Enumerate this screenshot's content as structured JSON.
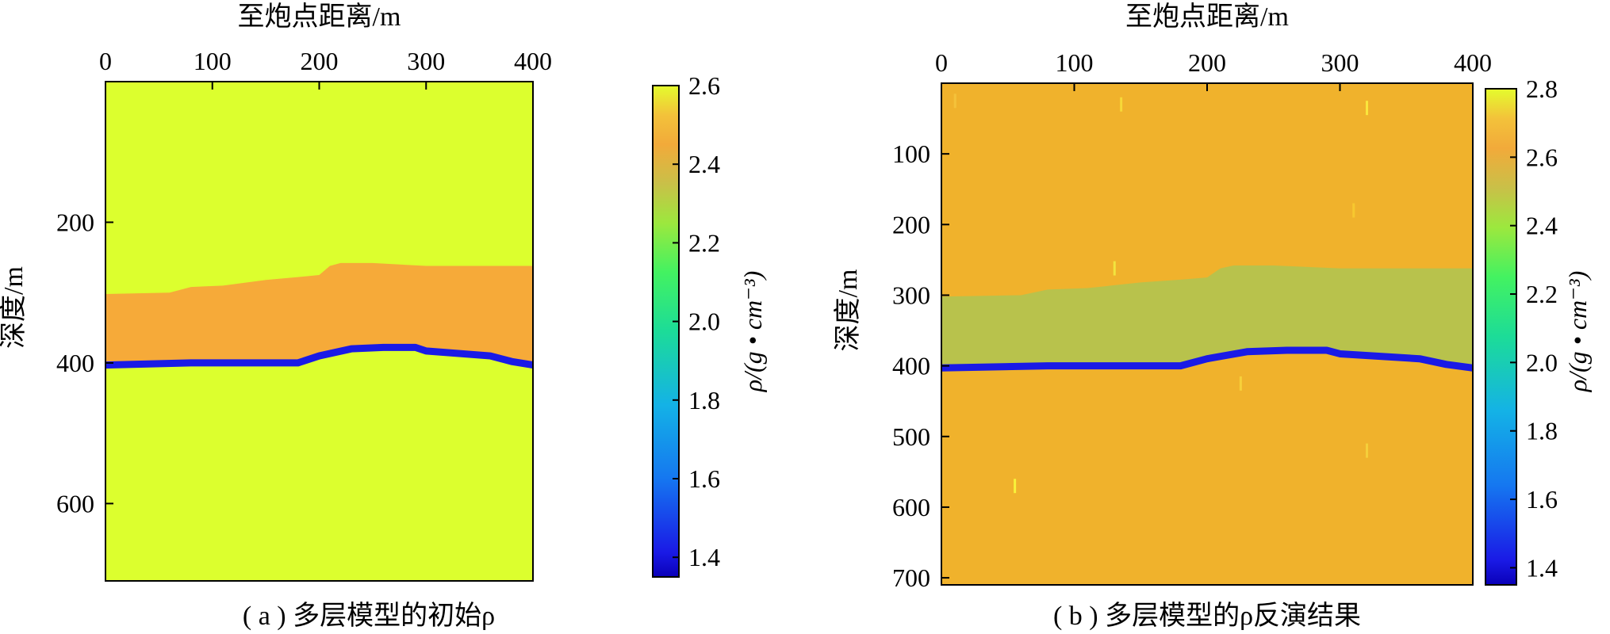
{
  "chart_data": [
    {
      "type": "heatmap",
      "panel": "a",
      "caption_prefix": "( a ) ",
      "caption": "多层模型的初始ρ",
      "xlabel": "至炮点距离/m",
      "ylabel": "深度/m",
      "xlim": [
        0,
        400
      ],
      "ylim": [
        710,
        0
      ],
      "xticks": [
        0,
        100,
        200,
        300,
        400
      ],
      "yticks": [
        200,
        400,
        600
      ],
      "colorbar": {
        "label": "ρ/(g • cm⁻³)",
        "range": [
          1.35,
          2.6
        ],
        "ticks": [
          1.4,
          1.6,
          1.8,
          2.0,
          2.2,
          2.4,
          2.6
        ],
        "tick_labels": [
          "1.4",
          "1.6",
          "1.8",
          "2.0",
          "2.2",
          "2.4",
          "2.6"
        ]
      },
      "layers": [
        {
          "value": 2.6,
          "color": "#dcff2e",
          "region": "above layer top"
        },
        {
          "value": 2.4,
          "color": "#f6aa39",
          "region": "between layer top and blue boundary"
        },
        {
          "value": 2.6,
          "color": "#dcff2e",
          "region": "below blue boundary"
        }
      ],
      "layer_top_depth": {
        "x": [
          0,
          60,
          80,
          110,
          150,
          180,
          200,
          210,
          220,
          250,
          300,
          400
        ],
        "y": [
          302,
          300,
          292,
          290,
          282,
          278,
          275,
          262,
          258,
          258,
          262,
          262
        ]
      },
      "boundary": {
        "value": 1.35,
        "color": "#1a1ae6",
        "x": [
          0,
          80,
          180,
          200,
          230,
          260,
          290,
          300,
          360,
          380,
          400
        ],
        "y": [
          403,
          400,
          400,
          390,
          380,
          378,
          378,
          383,
          390,
          398,
          403
        ]
      }
    },
    {
      "type": "heatmap",
      "panel": "b",
      "caption_prefix": "( b ) ",
      "caption": "多层模型的ρ反演结果",
      "xlabel": "至炮点距离/m",
      "ylabel": "深度/m",
      "xlim": [
        0,
        400
      ],
      "ylim": [
        710,
        0
      ],
      "xticks": [
        0,
        100,
        200,
        300,
        400
      ],
      "yticks": [
        100,
        200,
        300,
        400,
        500,
        600,
        700
      ],
      "colorbar": {
        "label": "ρ/(g • cm⁻³)",
        "range": [
          1.35,
          2.8
        ],
        "ticks": [
          1.4,
          1.6,
          1.8,
          2.0,
          2.2,
          2.4,
          2.6,
          2.8
        ],
        "tick_labels": [
          "1.4",
          "1.6",
          "1.8",
          "2.0",
          "2.2",
          "2.4",
          "2.6",
          "2.8"
        ]
      },
      "layers": [
        {
          "value": 2.6,
          "color": "#f0b22c",
          "region": "above layer top"
        },
        {
          "value": 2.4,
          "color": "#b8c24c",
          "region": "between layer top and blue boundary"
        },
        {
          "value": 2.6,
          "color": "#f0b22c",
          "region": "below blue boundary"
        }
      ],
      "layer_top_depth": {
        "x": [
          0,
          60,
          80,
          110,
          150,
          180,
          200,
          210,
          220,
          250,
          300,
          400
        ],
        "y": [
          302,
          300,
          292,
          290,
          282,
          278,
          275,
          262,
          258,
          258,
          262,
          262
        ]
      },
      "boundary": {
        "value": 1.35,
        "color": "#1a1ae6",
        "x": [
          0,
          80,
          180,
          200,
          230,
          260,
          290,
          300,
          360,
          380,
          400
        ],
        "y": [
          403,
          400,
          400,
          390,
          380,
          378,
          378,
          383,
          390,
          398,
          403
        ]
      },
      "speckles": [
        {
          "x": 10,
          "y": 25,
          "color": "#f4c23a"
        },
        {
          "x": 135,
          "y": 30,
          "color": "#f7d838"
        },
        {
          "x": 320,
          "y": 35,
          "color": "#fae63c"
        },
        {
          "x": 310,
          "y": 180,
          "color": "#f7c82f"
        },
        {
          "x": 130,
          "y": 262,
          "color": "#f2e43e"
        },
        {
          "x": 225,
          "y": 425,
          "color": "#f7d03a"
        },
        {
          "x": 320,
          "y": 520,
          "color": "#f5cf3a"
        },
        {
          "x": 55,
          "y": 570,
          "color": "#f8f23a"
        }
      ]
    }
  ]
}
